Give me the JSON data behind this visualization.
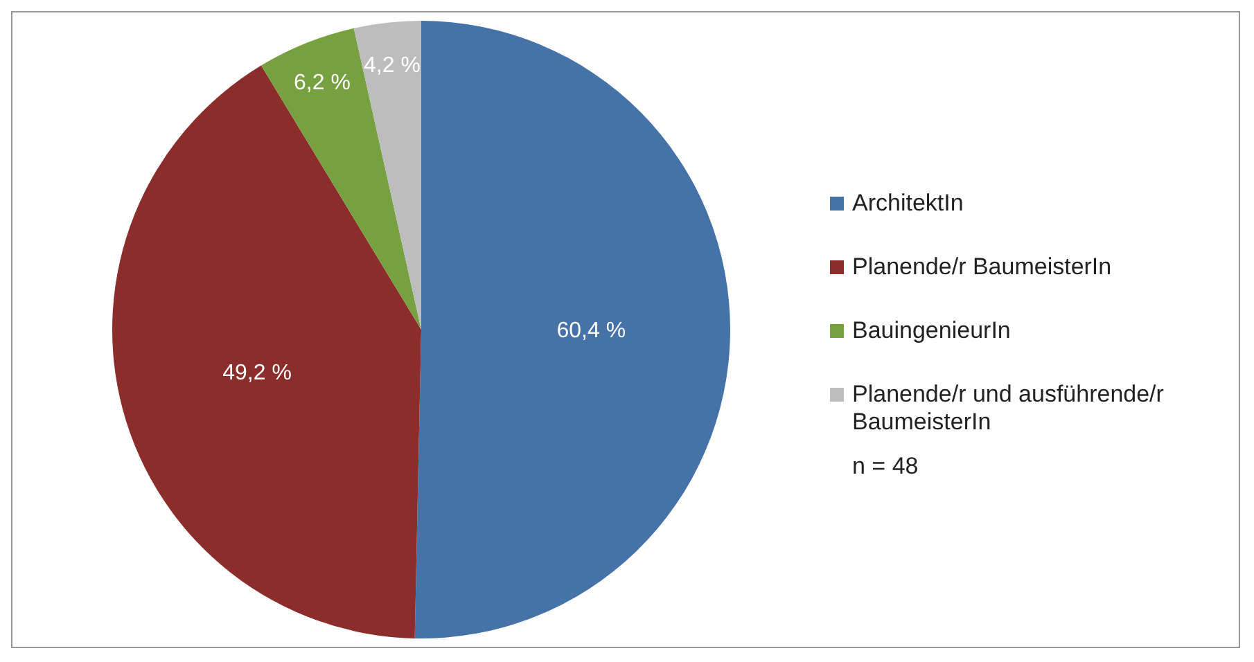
{
  "chart_data": {
    "type": "pie",
    "categories": [
      "ArchitektIn",
      "Planende/r BaumeisterIn",
      "BauingenieurIn",
      "Planende/r und ausführende/r BaumeisterIn"
    ],
    "values": [
      60.4,
      49.2,
      6.2,
      4.2
    ],
    "value_labels": [
      "60,4 %",
      "49,2 %",
      "6,2 %",
      "4,2 %"
    ],
    "colors": [
      "#4572a7",
      "#8b2e2b",
      "#77a040",
      "#bdbdbd"
    ],
    "legend": "right",
    "annotations": [
      "n = 48"
    ]
  }
}
